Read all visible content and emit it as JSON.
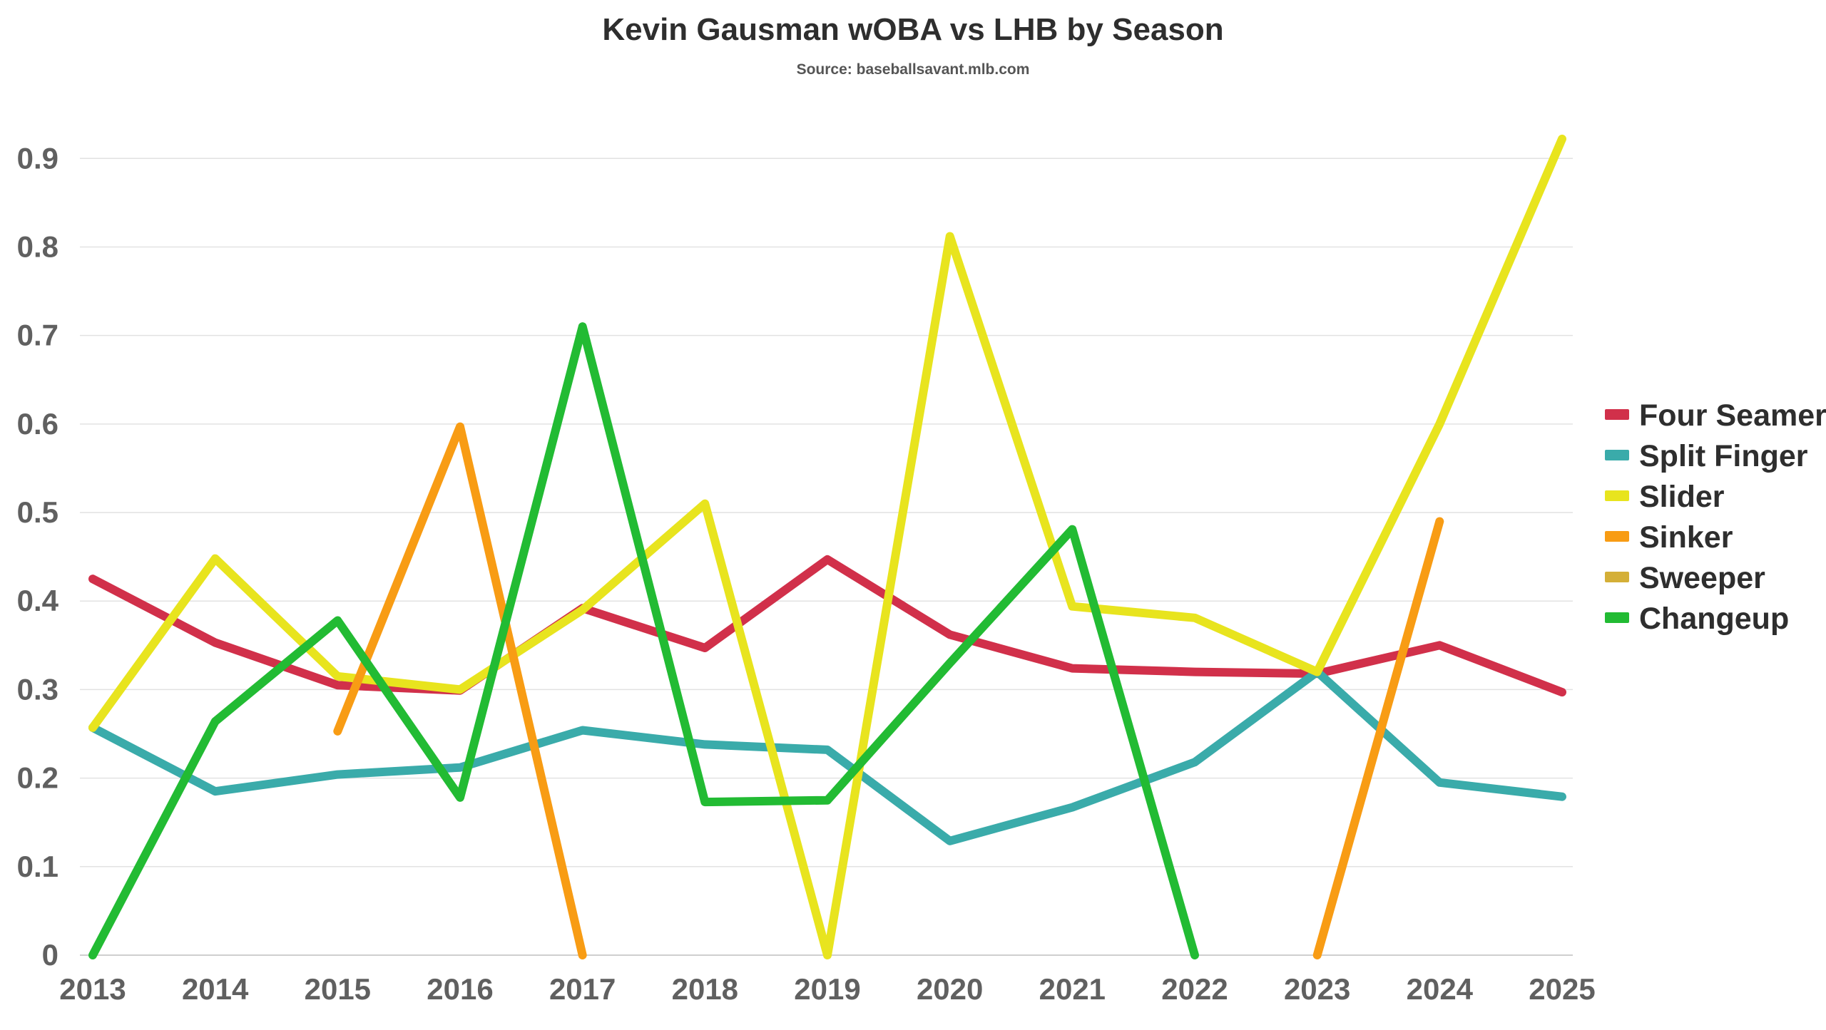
{
  "chart_data": {
    "type": "line",
    "title": "Kevin Gausman wOBA vs LHB by Season",
    "subtitle": "Source: baseballsavant.mlb.com",
    "xlabel": "",
    "ylabel": "",
    "categories": [
      "2013",
      "2014",
      "2015",
      "2016",
      "2017",
      "2018",
      "2019",
      "2020",
      "2021",
      "2022",
      "2023",
      "2024",
      "2025"
    ],
    "ylim": [
      0,
      0.93
    ],
    "yticks": [
      0,
      0.1,
      0.2,
      0.3,
      0.4,
      0.5,
      0.6,
      0.7,
      0.8,
      0.9
    ],
    "ytick_labels": [
      "0",
      "0.1",
      "0.2",
      "0.3",
      "0.4",
      "0.5",
      "0.6",
      "0.7",
      "0.8",
      "0.9"
    ],
    "grid": true,
    "legend_position": "right",
    "series": [
      {
        "name": "Four Seamer",
        "color": "#d1304a",
        "values": [
          0.425,
          0.353,
          0.305,
          0.299,
          0.392,
          0.347,
          0.447,
          0.362,
          0.324,
          0.32,
          0.318,
          0.35,
          0.297
        ]
      },
      {
        "name": "Split Finger",
        "color": "#3aabaa",
        "values": [
          0.257,
          0.185,
          0.204,
          0.212,
          0.254,
          0.238,
          0.232,
          0.129,
          0.167,
          0.218,
          0.32,
          0.195,
          0.179
        ]
      },
      {
        "name": "Slider",
        "color": "#e8e41e",
        "values": [
          0.257,
          0.448,
          0.315,
          0.3,
          0.39,
          0.51,
          0.0,
          0.812,
          0.394,
          0.381,
          0.32,
          0.6,
          0.922
        ]
      },
      {
        "name": "Sinker",
        "color": "#f89c14",
        "values": [
          null,
          null,
          0.253,
          0.597,
          0.0,
          null,
          null,
          null,
          null,
          null,
          0.0,
          0.49,
          null
        ]
      },
      {
        "name": "Sweeper",
        "color": "#d4af37",
        "values": [
          null,
          null,
          null,
          null,
          null,
          null,
          null,
          null,
          null,
          null,
          null,
          null,
          null
        ]
      },
      {
        "name": "Changeup",
        "color": "#22bb33",
        "values": [
          0.0,
          0.264,
          0.378,
          0.178,
          0.71,
          0.173,
          0.175,
          0.33,
          0.481,
          0.0,
          null,
          null,
          null
        ]
      }
    ]
  }
}
